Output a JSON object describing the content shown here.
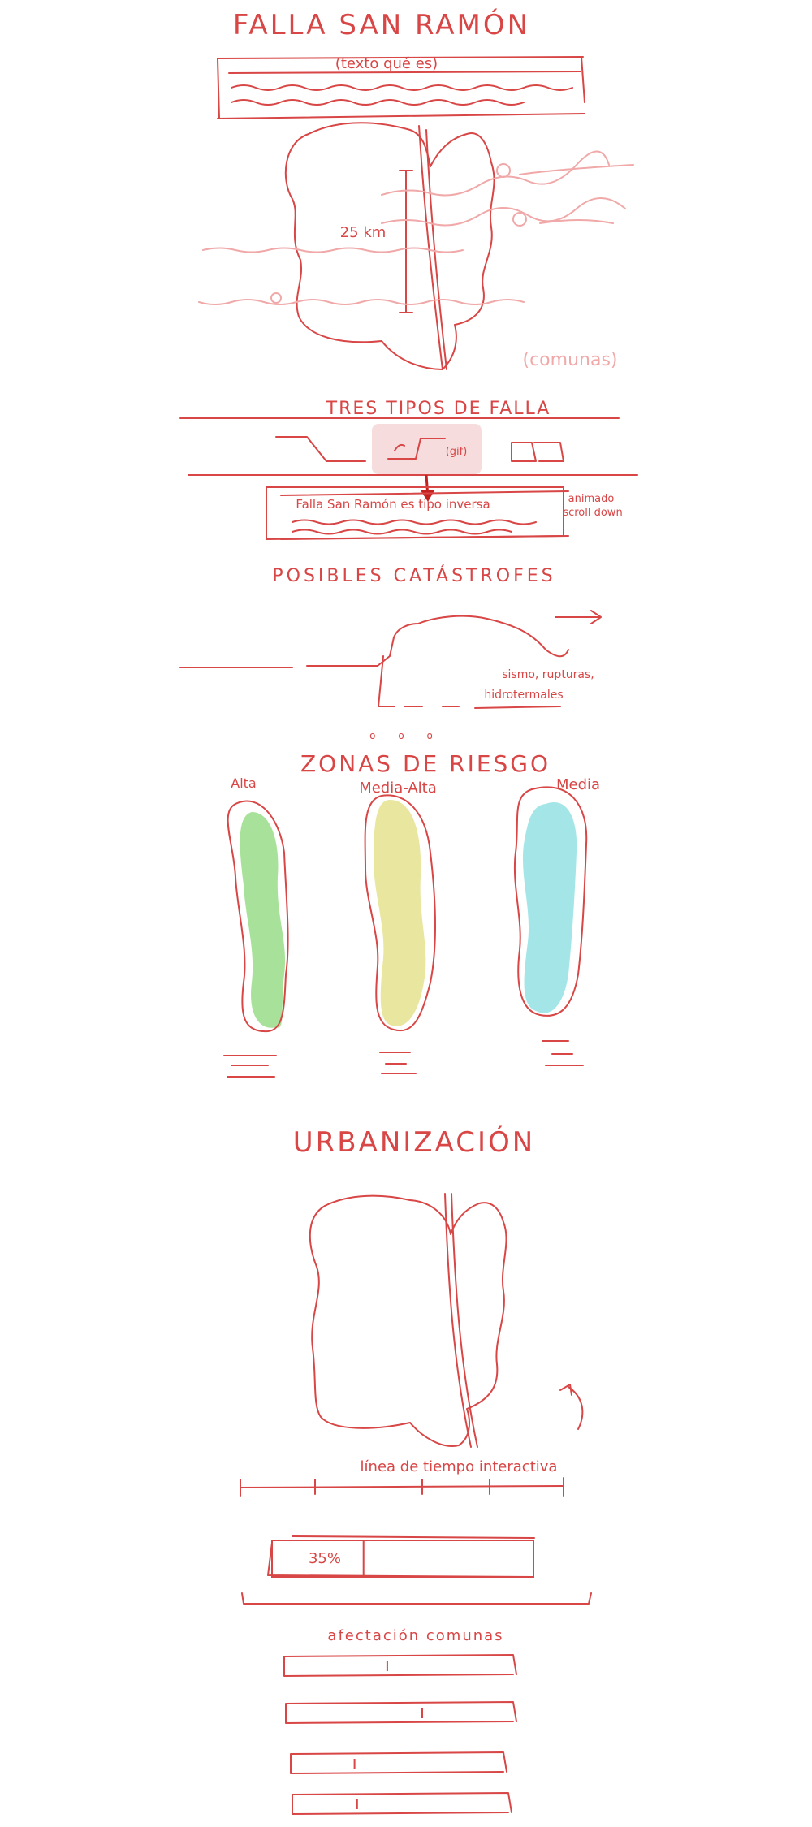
{
  "title": "FALLA SAN RAMÓN",
  "intro": {
    "note": "(texto qué es)"
  },
  "map1": {
    "distance_label": "25 km",
    "communes_label": "(comunas)"
  },
  "fault_types": {
    "heading": "TRES TIPOS DE FALLA",
    "gif_label": "(gif)",
    "caption": "Falla San Ramón es tipo inversa",
    "annotation_line1": "animado",
    "annotation_line2": "scroll down"
  },
  "catastrophes": {
    "heading": "POSIBLES CATÁSTROFES",
    "effects_line1": "sismo, rupturas,",
    "effects_line2": "hidrotermales",
    "dots": "o o o"
  },
  "risk_zones": {
    "heading": "ZONAS DE RIESGO",
    "zones": [
      {
        "label": "Alta",
        "color": "#a8e29a"
      },
      {
        "label": "Media-Alta",
        "color": "#e9e6a0"
      },
      {
        "label": "Media",
        "color": "#a4e6e8"
      }
    ]
  },
  "urbanization": {
    "heading": "URBANIZACIÓN",
    "timeline_label": "línea de tiempo interactiva",
    "percent": "35%",
    "percent_value": 35,
    "comunas_label": "afectación comunas",
    "comuna_bar_fractions": [
      0.45,
      0.6,
      0.3,
      0.3
    ]
  }
}
